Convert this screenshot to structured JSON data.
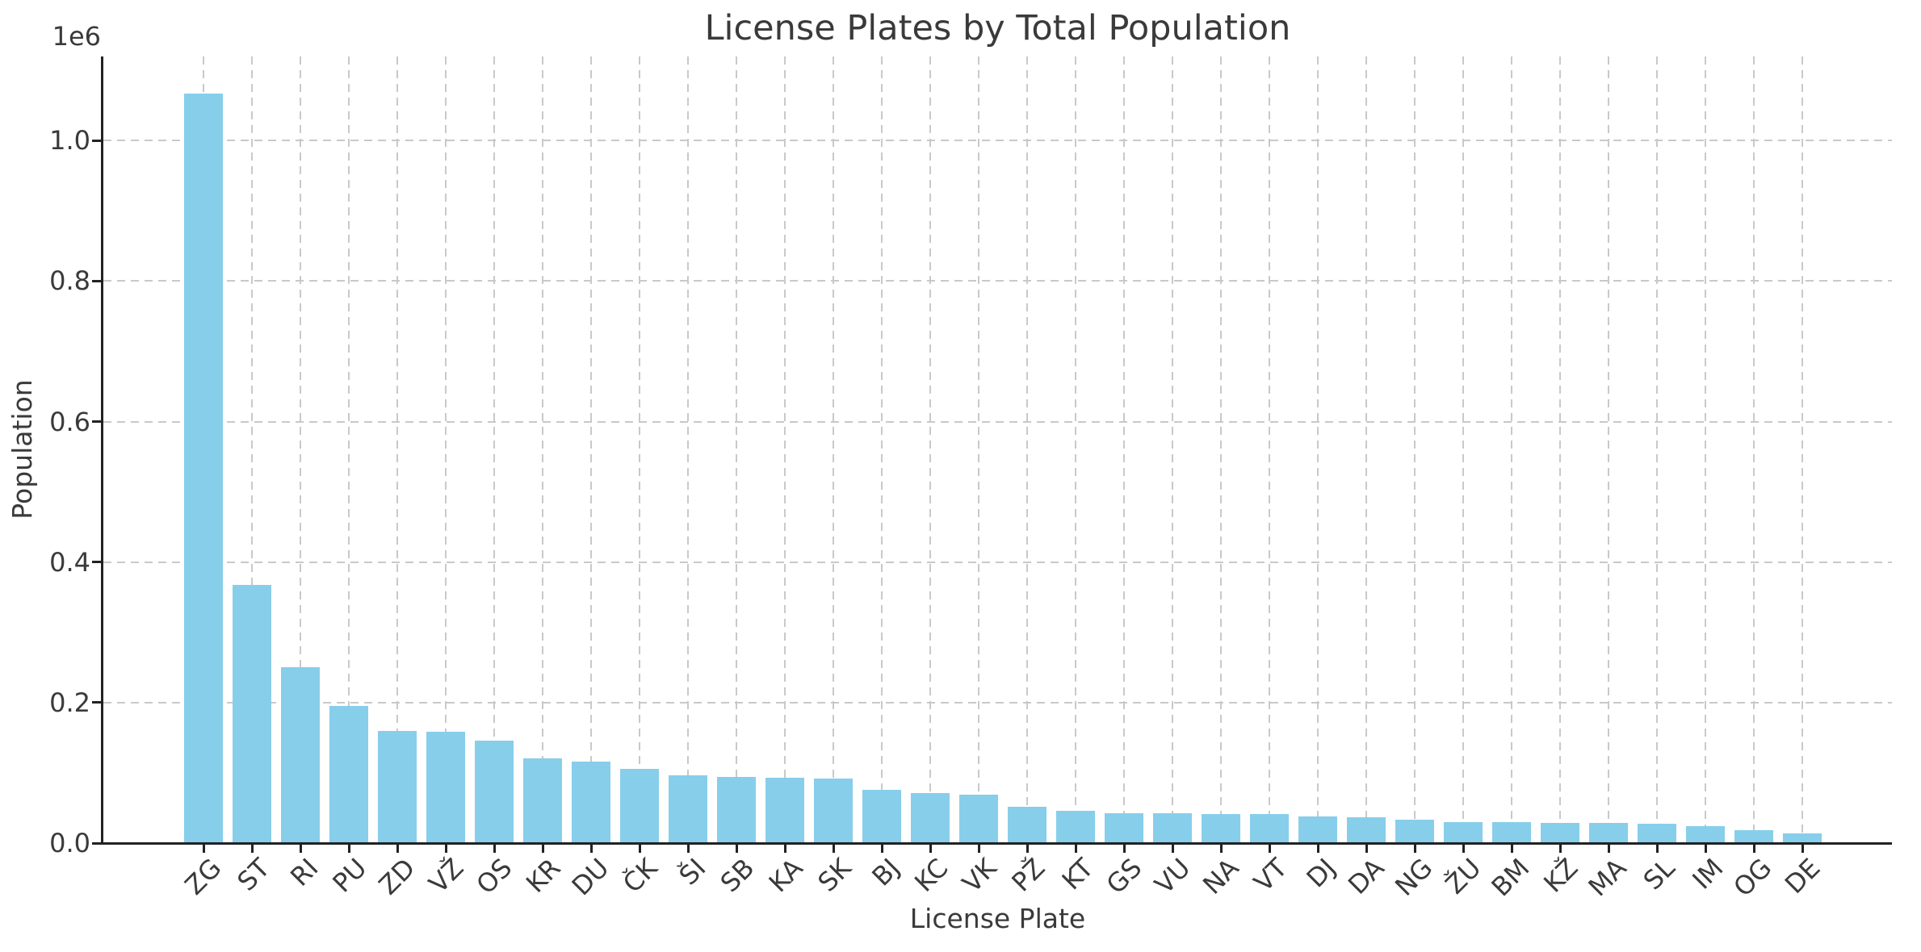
{
  "chart_data": {
    "type": "bar",
    "title": "License Plates by Total Population",
    "xlabel": "License Plate",
    "ylabel": "Population",
    "y_axis_offset_label": "1e6",
    "categories": [
      "ZG",
      "ST",
      "RI",
      "PU",
      "ZD",
      "VŽ",
      "OS",
      "KR",
      "DU",
      "ČK",
      "ŠI",
      "SB",
      "KA",
      "SK",
      "BJ",
      "KC",
      "VK",
      "PŽ",
      "KT",
      "GS",
      "VU",
      "NA",
      "VT",
      "DJ",
      "DA",
      "NG",
      "ŽU",
      "BM",
      "KŽ",
      "MA",
      "SL",
      "IM",
      "OG",
      "DE"
    ],
    "values": [
      1067000,
      368000,
      250000,
      195000,
      160000,
      159000,
      145500,
      120200,
      115700,
      106000,
      96900,
      93800,
      93300,
      91500,
      75500,
      71700,
      68600,
      51700,
      46400,
      42200,
      42000,
      41800,
      41600,
      37800,
      36700,
      33700,
      30000,
      29900,
      28800,
      28600,
      27200,
      24500,
      18000,
      14000
    ],
    "ylim": [
      0,
      1120000
    ],
    "yticks": {
      "values": [
        0,
        200000,
        400000,
        600000,
        800000,
        1000000
      ],
      "labels": [
        "0.0",
        "0.2",
        "0.4",
        "0.6",
        "0.8",
        "1.0"
      ]
    },
    "xtick_rotation_deg": 45,
    "grid": {
      "visible": true,
      "style": "dashed",
      "axes": "both"
    },
    "legend": null,
    "colors": {
      "bar": "#87CEEB",
      "grid": "#c9c9c9",
      "axis": "#222222",
      "text": "#3a3a3a",
      "background": "#ffffff"
    }
  }
}
